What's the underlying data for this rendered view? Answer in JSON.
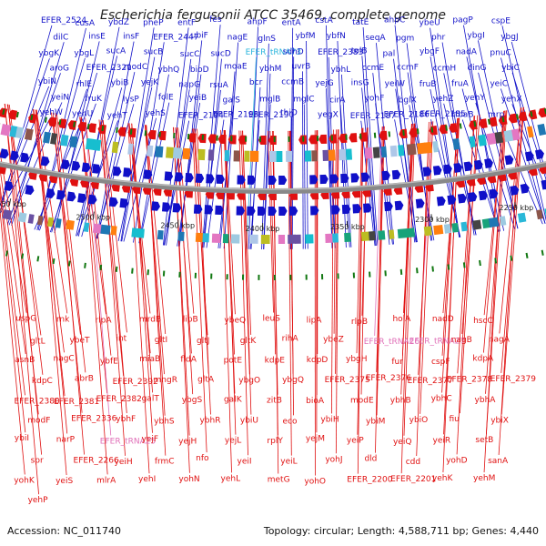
{
  "title": "Escherichia fergusonii ATCC 35469, complete genome",
  "accession": "Accession: NC_011740",
  "stats": "Topology: circular; Length: 4,588,711 bp; Genes: 4,440",
  "colors": {
    "forward": "#1010c8",
    "reverse": "#e01010",
    "trna": "#28b4dc",
    "trna_reverse": "#e070b8",
    "backbone": "#888888",
    "tick": "#117711"
  },
  "scale_labels": [
    "2550 kbp",
    "2500 kbp",
    "2450 kbp",
    "2400 kbp",
    "2350 kbp",
    "2300 kbp",
    "2250 kbp"
  ],
  "forward_labels": [
    "EFER_2524",
    "cusA",
    "ybdZ",
    "pheP",
    "entF",
    "fes",
    "ahpF",
    "entA",
    "cstA",
    "tatE",
    "ahpC",
    "ybeU",
    "pagP",
    "cspE",
    "dilC",
    "insE",
    "insF",
    "EFER_2447",
    "ubiF",
    "nagE",
    "glnS",
    "ybfM",
    "ybfN",
    "seqA",
    "pgm",
    "phr",
    "ybgI",
    "ybgJ",
    "ybgK",
    "ybgL",
    "sucA",
    "sucB",
    "sucC",
    "sucD",
    "EFER_tRNA73",
    "sdhD",
    "EFER_2383",
    "tolB",
    "pal",
    "ybgF",
    "nadA",
    "pnuC",
    "aroG",
    "EFER_2321",
    "modC",
    "ybhQ",
    "bioD",
    "moaE",
    "ybhM",
    "uvrB",
    "ybhL",
    "ccmE",
    "ccmF",
    "ccmH",
    "dinG",
    "ybiC",
    "ybiN",
    "rhlE",
    "ybiB",
    "yejK",
    "napG",
    "rsuA",
    "bcr",
    "ccmB",
    "yejG",
    "insG",
    "yeiW",
    "fruB",
    "fruA",
    "yeiC",
    "yeiN",
    "fruK",
    "lysP",
    "folE",
    "yeiB",
    "galS",
    "mglB",
    "mglC",
    "cirA",
    "yohF",
    "bglX",
    "yehZ",
    "yehY",
    "yehX",
    "yehW",
    "yehU",
    "yehT",
    "yehS",
    "EFER_2194",
    "EFER_2193",
    "EFER_2190",
    "thiD",
    "yegX",
    "EFER_2187",
    "EFER_2186",
    "EFER_2185",
    "rfbaB",
    "mrp"
  ],
  "reverse_labels": [
    "uspG",
    "rnk",
    "rlpA",
    "mrdB",
    "lipB",
    "ybeQ",
    "leuS",
    "lipA",
    "rlpB",
    "holA",
    "nadD",
    "hscC",
    "gltL",
    "ybeT",
    "int",
    "gltI",
    "gltJ",
    "gltK",
    "rihA",
    "ybeZ",
    "EFER_tRNA26",
    "EFER_tRNA27",
    "nagB",
    "nagA",
    "asnB",
    "nagC",
    "ybfE",
    "miaB",
    "fldA",
    "potE",
    "kdpE",
    "kdpD",
    "ybgH",
    "fur",
    "cspF",
    "kdpA",
    "kdpC",
    "abrB",
    "EFER_2392",
    "mngR",
    "gltA",
    "ybgO",
    "ybgQ",
    "EFER_2375",
    "EFER_2376",
    "EFER_2377",
    "EFER_2378",
    "EFER_2379",
    "EFER_2380",
    "EFER_2381",
    "EFER_2382",
    "galT",
    "ybgS",
    "galK",
    "zitB",
    "bioA",
    "modE",
    "ybhB",
    "ybhC",
    "ybhA",
    "modF",
    "EFER_2336",
    "ybhF",
    "ybhS",
    "ybhR",
    "ybiU",
    "eco",
    "ybiH",
    "ybiM",
    "ybiO",
    "fiu",
    "ybiX",
    "ybiI",
    "narP",
    "EFER_tRNA25",
    "yejF",
    "yejH",
    "yejL",
    "rplY",
    "yejM",
    "yeiP",
    "yeiQ",
    "yeiR",
    "setB",
    "spr",
    "EFER_2266",
    "yeiH",
    "frmC",
    "nfo",
    "yeiI",
    "yeiL",
    "yohJ",
    "dld",
    "cdd",
    "yohD",
    "sanA",
    "yohK",
    "yeiS",
    "mlrA",
    "yehI",
    "yohN",
    "yehL",
    "metG",
    "yohO",
    "EFER_2200",
    "EFER_2201",
    "yehK",
    "yehM",
    "yehP"
  ]
}
